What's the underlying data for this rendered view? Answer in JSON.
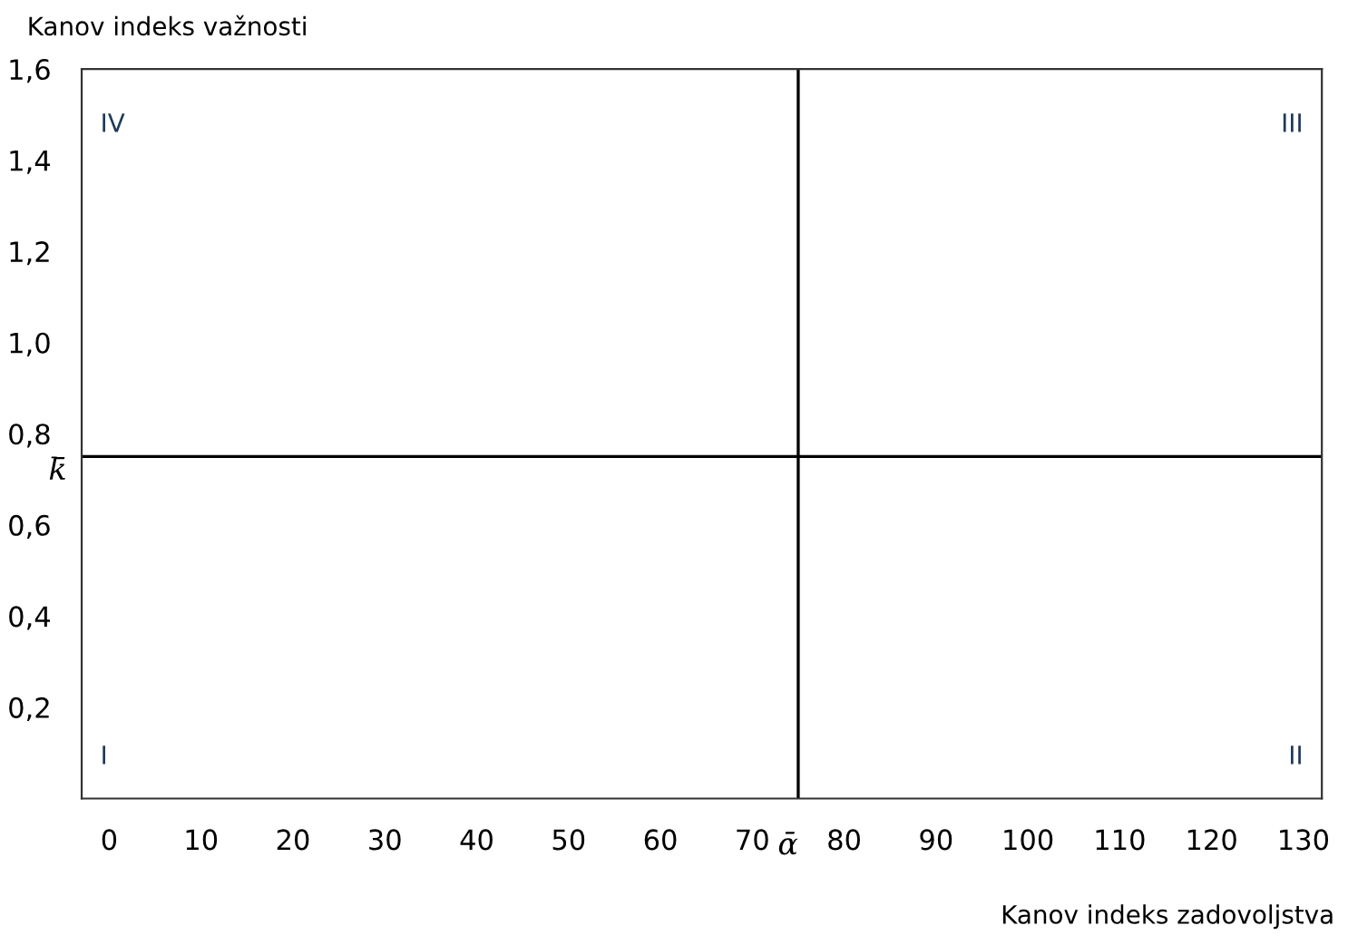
{
  "chart_data": {
    "type": "scatter",
    "xlabel": "Kanov indeks zadovoljstva",
    "ylabel": "Kanov indeks važnosti",
    "xlim": [
      -3,
      132
    ],
    "ylim": [
      0,
      1.6
    ],
    "xticks": [
      0,
      10,
      20,
      30,
      40,
      50,
      60,
      70,
      80,
      90,
      100,
      110,
      120,
      130
    ],
    "yticks": [
      {
        "value": 0.2,
        "label": "0,2"
      },
      {
        "value": 0.4,
        "label": "0,4"
      },
      {
        "value": 0.6,
        "label": "0,6"
      },
      {
        "value": 0.8,
        "label": "0,8"
      },
      {
        "value": 1.0,
        "label": "1,0"
      },
      {
        "value": 1.2,
        "label": "1,2"
      },
      {
        "value": 1.4,
        "label": "1,4"
      },
      {
        "value": 1.6,
        "label": "1,6"
      }
    ],
    "ref_lines": [
      {
        "axis": "y",
        "value": 0.75,
        "label": "k̄",
        "color": "#000000"
      },
      {
        "axis": "x",
        "value": 75,
        "label": "ᾱ",
        "color": "#000000"
      }
    ],
    "annotations": [
      "I",
      "II",
      "III",
      "IV"
    ],
    "grid": false
  }
}
